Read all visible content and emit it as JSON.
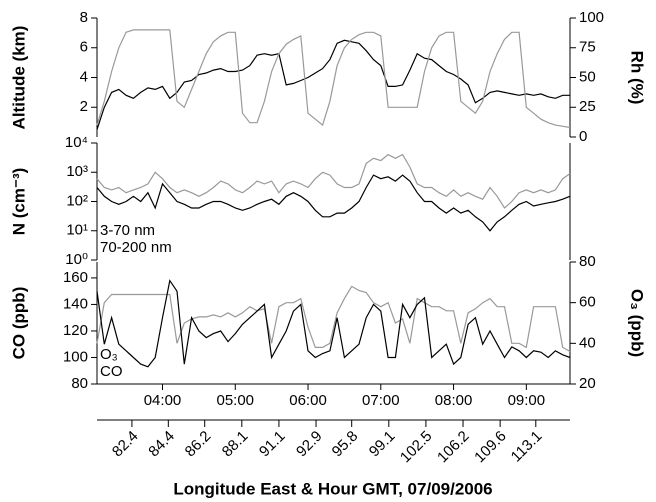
{
  "chart_data": [
    {
      "type": "line",
      "ylabel": "Altitude (km)",
      "y2label": "Rh (%)",
      "x": [
        3.1,
        3.2,
        3.3,
        3.4,
        3.5,
        3.6,
        3.7,
        3.8,
        3.9,
        4.0,
        4.1,
        4.2,
        4.3,
        4.4,
        4.5,
        4.6,
        4.7,
        4.8,
        4.9,
        5.0,
        5.1,
        5.2,
        5.3,
        5.4,
        5.5,
        5.6,
        5.7,
        5.8,
        5.9,
        6.0,
        6.1,
        6.2,
        6.3,
        6.4,
        6.5,
        6.6,
        6.7,
        6.8,
        6.9,
        7.0,
        7.1,
        7.2,
        7.3,
        7.4,
        7.5,
        7.6,
        7.7,
        7.8,
        7.9,
        8.0,
        8.1,
        8.2,
        8.3,
        8.4,
        8.5,
        8.6,
        8.7,
        8.8,
        8.9,
        9.0,
        9.1,
        9.2,
        9.3,
        9.4,
        9.5,
        9.6
      ],
      "xlim": [
        3.1,
        9.6
      ],
      "ylim": [
        0,
        8
      ],
      "yticks": [
        2,
        4,
        6,
        8
      ],
      "y2lim": [
        0,
        100
      ],
      "y2ticks": [
        0,
        25,
        50,
        75,
        100
      ],
      "series": [
        {
          "color": "#000000",
          "values": [
            0.5,
            2.0,
            3.0,
            3.2,
            2.8,
            2.6,
            3.0,
            3.3,
            3.2,
            3.4,
            2.6,
            3.0,
            3.7,
            3.8,
            4.2,
            4.3,
            4.5,
            4.6,
            4.4,
            4.4,
            4.5,
            4.8,
            5.5,
            5.6,
            5.5,
            5.6,
            3.5,
            3.6,
            3.8,
            4.0,
            4.3,
            4.6,
            5.2,
            6.3,
            6.5,
            6.4,
            6.3,
            5.8,
            5.2,
            4.8,
            3.4,
            3.4,
            3.5,
            4.5,
            5.6,
            5.3,
            5.2,
            4.8,
            4.4,
            4.2,
            3.9,
            3.5,
            2.3,
            2.6,
            3.0,
            3.1,
            3.0,
            2.9,
            2.8,
            2.9,
            2.8,
            2.9,
            2.7,
            2.6,
            2.8,
            2.8
          ]
        },
        {
          "color": "#999999",
          "axis": "y2",
          "values": [
            10,
            30,
            55,
            75,
            88,
            90,
            90,
            90,
            90,
            90,
            90,
            30,
            25,
            40,
            55,
            70,
            80,
            85,
            88,
            88,
            20,
            12,
            12,
            30,
            55,
            70,
            78,
            82,
            85,
            20,
            15,
            10,
            30,
            60,
            75,
            82,
            86,
            88,
            88,
            85,
            25,
            25,
            25,
            25,
            25,
            55,
            75,
            85,
            88,
            88,
            30,
            25,
            20,
            30,
            55,
            70,
            82,
            88,
            88,
            25,
            20,
            15,
            12,
            10,
            9,
            8
          ]
        }
      ]
    },
    {
      "type": "line",
      "ylabel": "N (cm⁻³)",
      "log_scale": true,
      "legend": "lower left",
      "x": [
        3.1,
        3.2,
        3.3,
        3.4,
        3.5,
        3.6,
        3.7,
        3.8,
        3.9,
        4.0,
        4.1,
        4.2,
        4.3,
        4.4,
        4.5,
        4.6,
        4.7,
        4.8,
        4.9,
        5.0,
        5.1,
        5.2,
        5.3,
        5.4,
        5.5,
        5.6,
        5.7,
        5.8,
        5.9,
        6.0,
        6.1,
        6.2,
        6.3,
        6.4,
        6.5,
        6.6,
        6.7,
        6.8,
        6.9,
        7.0,
        7.1,
        7.2,
        7.3,
        7.4,
        7.5,
        7.6,
        7.7,
        7.8,
        7.9,
        8.0,
        8.1,
        8.2,
        8.3,
        8.4,
        8.5,
        8.6,
        8.7,
        8.8,
        8.9,
        9.0,
        9.1,
        9.2,
        9.3,
        9.4,
        9.5,
        9.6
      ],
      "xlim": [
        3.1,
        9.6
      ],
      "ylim": [
        1,
        10000
      ],
      "yticks": [
        {
          "value": 1,
          "label": "10⁰"
        },
        {
          "value": 10,
          "label": "10¹"
        },
        {
          "value": 100,
          "label": "10²"
        },
        {
          "value": 1000,
          "label": "10³"
        },
        {
          "value": 10000,
          "label": "10⁴"
        }
      ],
      "series": [
        {
          "name": "3-70 nm",
          "color": "#999999",
          "values": [
            600,
            300,
            250,
            300,
            200,
            250,
            300,
            400,
            1000,
            600,
            300,
            200,
            250,
            200,
            150,
            200,
            300,
            500,
            400,
            250,
            200,
            300,
            500,
            400,
            500,
            200,
            400,
            500,
            400,
            300,
            600,
            1000,
            800,
            400,
            300,
            300,
            400,
            2000,
            3000,
            2500,
            4000,
            3000,
            4000,
            1500,
            400,
            300,
            300,
            200,
            150,
            250,
            150,
            200,
            150,
            120,
            300,
            150,
            60,
            100,
            200,
            250,
            200,
            250,
            200,
            250,
            600,
            900
          ]
        },
        {
          "name": "70-200 nm",
          "color": "#000000",
          "values": [
            300,
            150,
            100,
            80,
            100,
            150,
            100,
            200,
            60,
            400,
            200,
            100,
            80,
            60,
            60,
            80,
            100,
            100,
            80,
            60,
            50,
            60,
            80,
            100,
            120,
            80,
            150,
            200,
            150,
            100,
            50,
            30,
            30,
            40,
            40,
            60,
            100,
            300,
            800,
            600,
            700,
            500,
            800,
            500,
            200,
            100,
            100,
            60,
            40,
            60,
            40,
            50,
            30,
            20,
            10,
            20,
            30,
            50,
            80,
            100,
            70,
            80,
            90,
            100,
            120,
            150
          ]
        }
      ]
    },
    {
      "type": "line",
      "ylabel": "CO (ppb)",
      "y2label": "O₃ (ppb)",
      "legend": "lower left",
      "xlabel": "Longitude East & Hour GMT, 07/09/2006",
      "x": [
        3.1,
        3.2,
        3.3,
        3.4,
        3.5,
        3.6,
        3.7,
        3.8,
        3.9,
        4.0,
        4.1,
        4.2,
        4.3,
        4.4,
        4.5,
        4.6,
        4.7,
        4.8,
        4.9,
        5.0,
        5.1,
        5.2,
        5.3,
        5.4,
        5.5,
        5.6,
        5.7,
        5.8,
        5.9,
        6.0,
        6.1,
        6.2,
        6.3,
        6.4,
        6.5,
        6.6,
        6.7,
        6.8,
        6.9,
        7.0,
        7.1,
        7.2,
        7.3,
        7.4,
        7.5,
        7.6,
        7.7,
        7.8,
        7.9,
        8.0,
        8.1,
        8.2,
        8.3,
        8.4,
        8.5,
        8.6,
        8.7,
        8.8,
        8.9,
        9.0,
        9.1,
        9.2,
        9.3,
        9.4,
        9.5,
        9.6
      ],
      "xlim": [
        3.1,
        9.6
      ],
      "xticks": [
        {
          "value": 4,
          "label": "04:00"
        },
        {
          "value": 5,
          "label": "05:00"
        },
        {
          "value": 6,
          "label": "06:00"
        },
        {
          "value": 7,
          "label": "07:00"
        },
        {
          "value": 8,
          "label": "08:00"
        },
        {
          "value": 9,
          "label": "09:00"
        }
      ],
      "x2ticks": [
        {
          "value": 3.58,
          "label": "82.4"
        },
        {
          "value": 4.08,
          "label": "84.4"
        },
        {
          "value": 4.58,
          "label": "86.2"
        },
        {
          "value": 5.09,
          "label": "88.1"
        },
        {
          "value": 5.6,
          "label": "91.1"
        },
        {
          "value": 6.11,
          "label": "92.9"
        },
        {
          "value": 6.6,
          "label": "95.8"
        },
        {
          "value": 7.11,
          "label": "99.1"
        },
        {
          "value": 7.62,
          "label": "102.5"
        },
        {
          "value": 8.13,
          "label": "106.2"
        },
        {
          "value": 8.64,
          "label": "109.6"
        },
        {
          "value": 9.13,
          "label": "113.1"
        }
      ],
      "ylim": [
        80,
        172
      ],
      "yticks": [
        80,
        100,
        120,
        140,
        160
      ],
      "y2lim": [
        20,
        80
      ],
      "y2ticks": [
        20,
        40,
        60,
        80
      ],
      "series": [
        {
          "name": "O₃",
          "color": "#999999",
          "axis": "y2",
          "values": [
            40,
            60,
            64,
            64,
            64,
            64,
            64,
            64,
            64,
            64,
            64,
            40,
            50,
            52,
            53,
            53,
            54,
            53,
            55,
            53,
            55,
            58,
            56,
            57,
            40,
            58,
            60,
            60,
            62,
            48,
            38,
            38,
            40,
            55,
            62,
            68,
            66,
            65,
            60,
            58,
            60,
            50,
            52,
            40,
            62,
            60,
            58,
            58,
            56,
            56,
            40,
            55,
            57,
            60,
            62,
            58,
            58,
            40,
            40,
            38,
            58,
            58,
            58,
            58,
            38,
            36
          ]
        },
        {
          "name": "CO",
          "color": "#000000",
          "values": [
            150,
            110,
            130,
            110,
            105,
            100,
            95,
            93,
            100,
            130,
            158,
            150,
            95,
            130,
            120,
            115,
            118,
            120,
            112,
            118,
            125,
            130,
            135,
            140,
            100,
            110,
            120,
            135,
            140,
            105,
            100,
            103,
            105,
            130,
            100,
            105,
            110,
            130,
            140,
            135,
            100,
            100,
            140,
            130,
            140,
            145,
            100,
            105,
            110,
            95,
            100,
            125,
            130,
            110,
            120,
            110,
            100,
            108,
            105,
            100,
            105,
            104,
            100,
            105,
            102,
            100
          ]
        }
      ]
    }
  ]
}
